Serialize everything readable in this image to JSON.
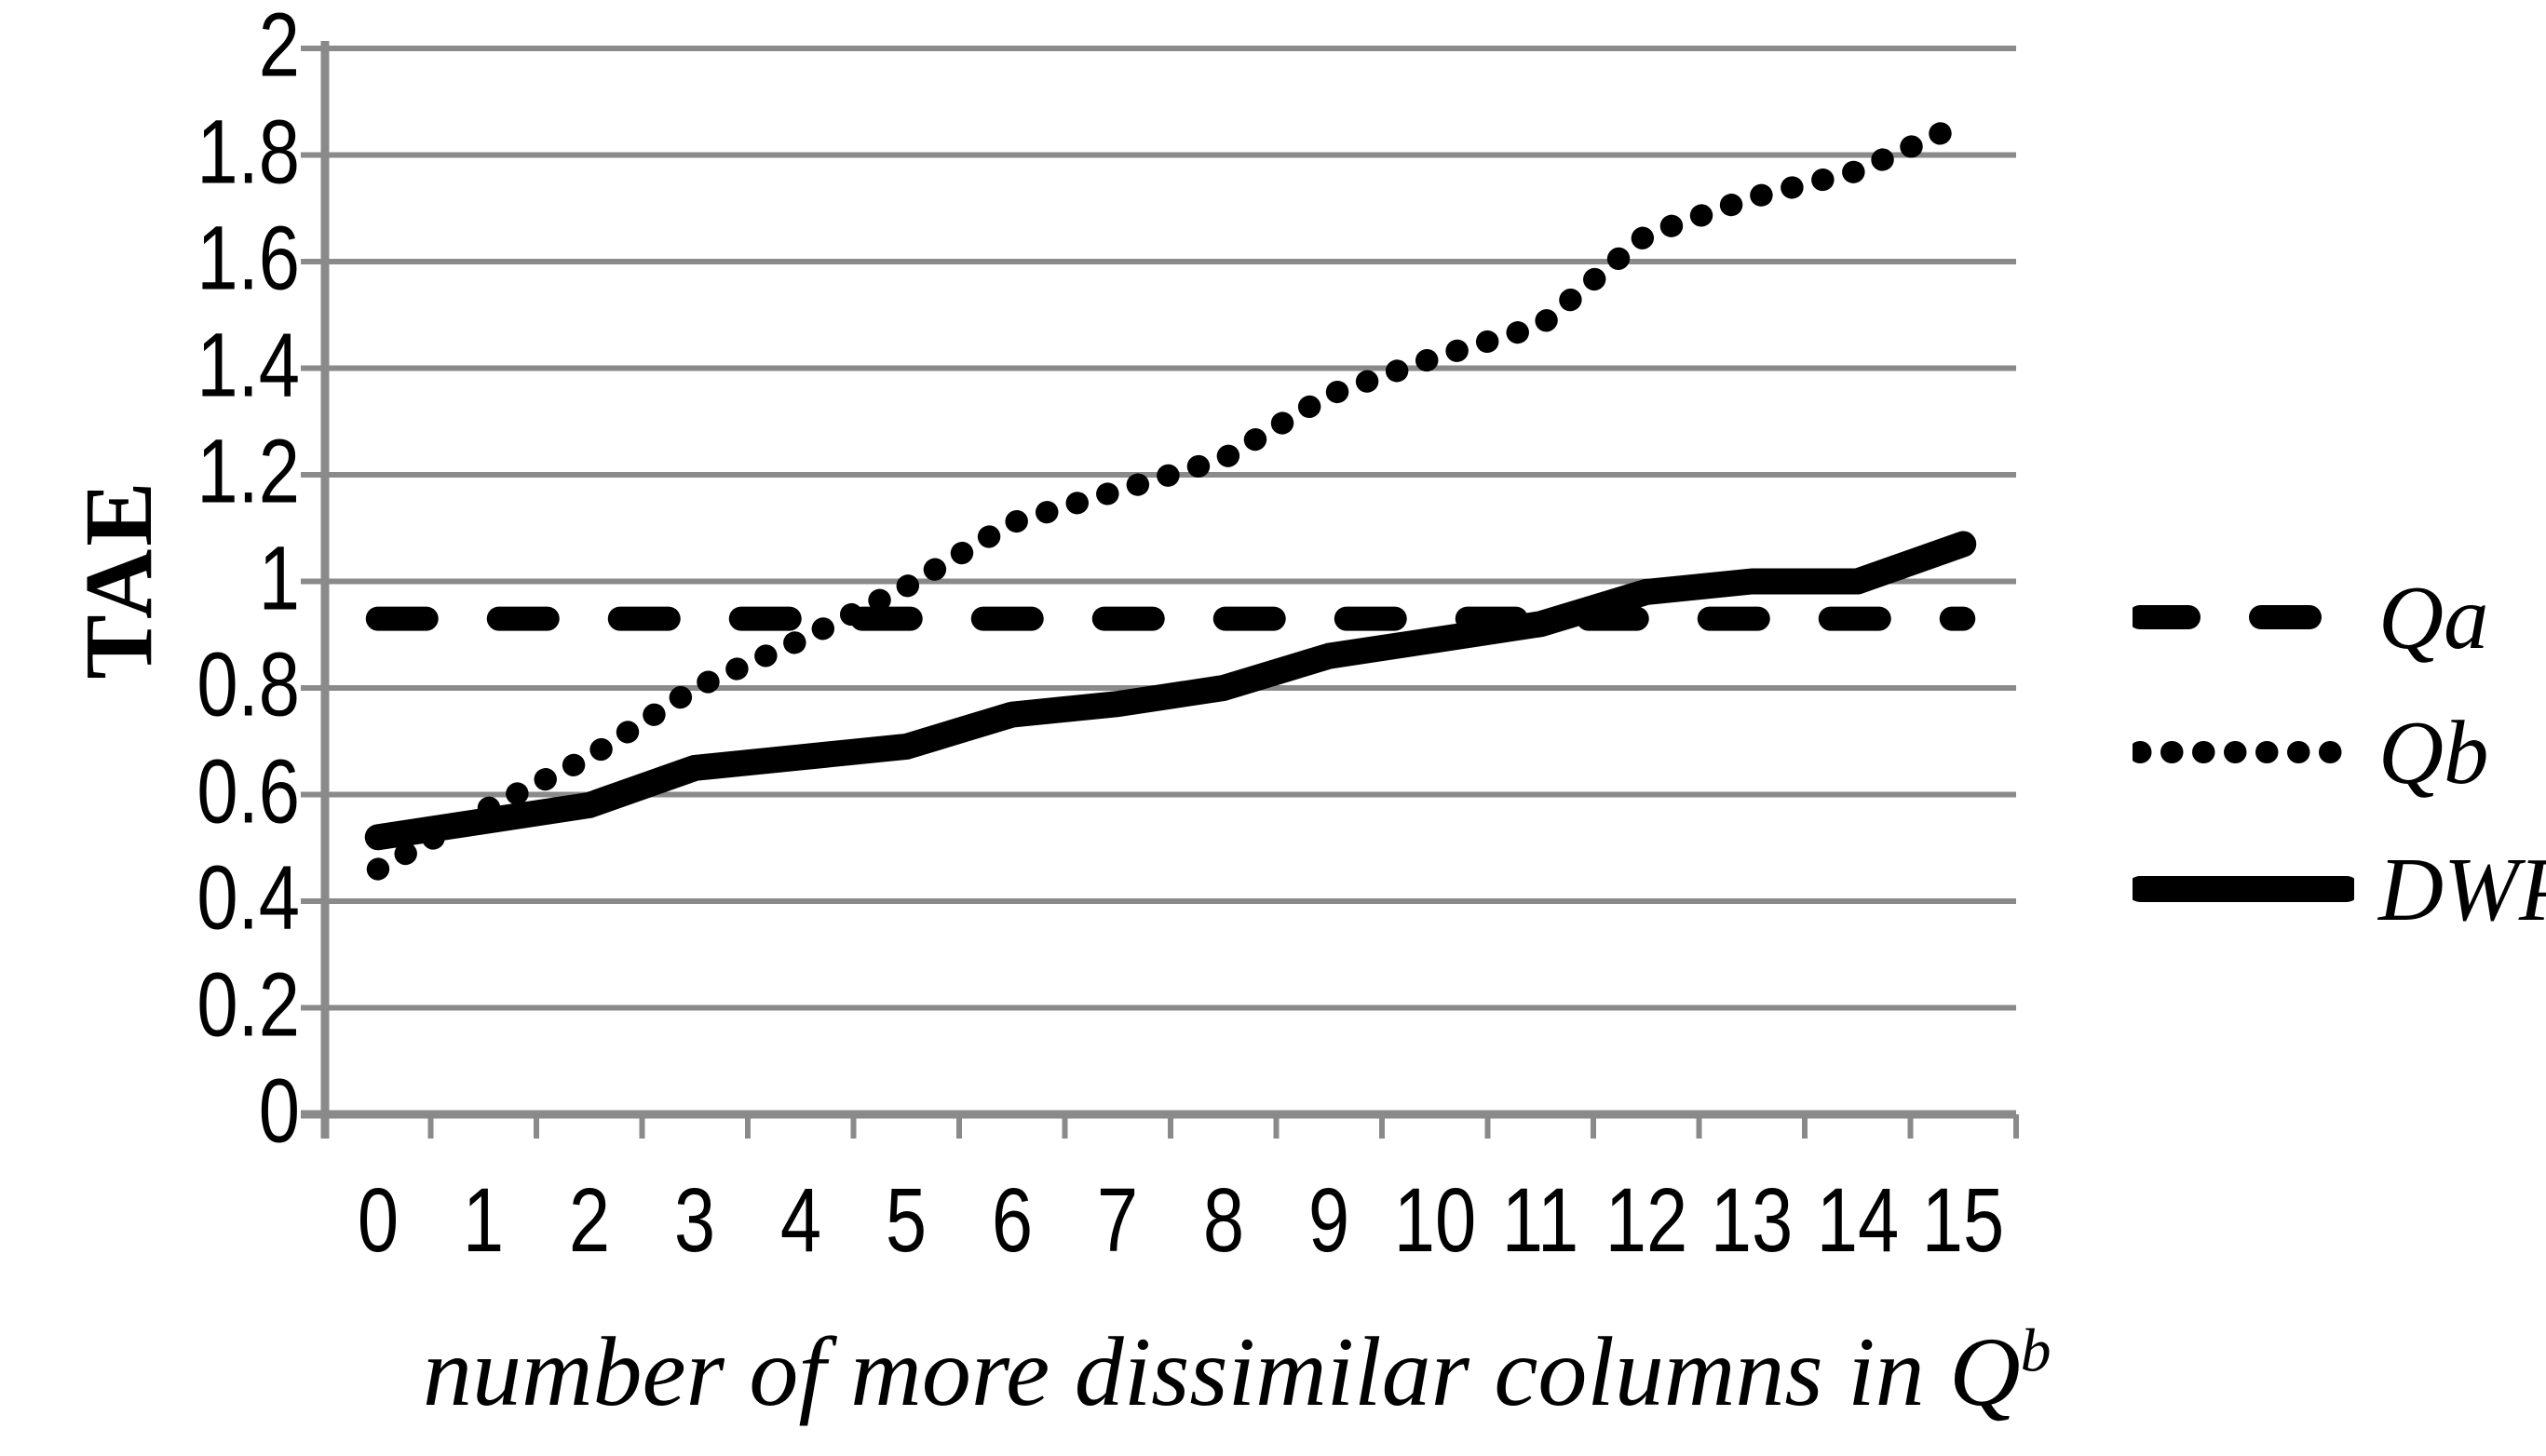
{
  "figure": {
    "background": "#ffffff",
    "grid_color": "#8a8a8a",
    "series_color": "#000000"
  },
  "y_axis": {
    "label": "TAE",
    "tick_labels": [
      "2",
      "1.8",
      "1.6",
      "1.4",
      "1.2",
      "1",
      "0.8",
      "0.6",
      "0.4",
      "0.2",
      "0"
    ],
    "min": 0,
    "max": 2
  },
  "x_axis": {
    "title_main": "number of more dissimilar columns in Q",
    "title_sup": "b",
    "tick_labels": [
      "0",
      "1",
      "2",
      "3",
      "4",
      "5",
      "6",
      "7",
      "8",
      "9",
      "10",
      "11",
      "12",
      "13",
      "14",
      "15"
    ]
  },
  "chart_data": {
    "type": "line",
    "title": "",
    "xlabel": "number of more dissimilar columns in Q^b",
    "ylabel": "TAE",
    "x_categories": [
      "0",
      "1",
      "2",
      "3",
      "4",
      "5",
      "6",
      "7",
      "8",
      "9",
      "10",
      "11",
      "12",
      "13",
      "14",
      "15"
    ],
    "ylim": [
      0,
      2
    ],
    "y_tick_step": 0.2,
    "grid": "horizontal",
    "legend_position": "right",
    "series": [
      {
        "name": "Qa",
        "style": "dashed",
        "values": [
          0.93,
          0.93,
          0.93,
          0.93,
          0.93,
          0.93,
          0.93,
          0.93,
          0.93,
          0.93,
          0.93,
          0.93,
          0.93,
          0.93,
          0.93,
          0.93
        ]
      },
      {
        "name": "Qb",
        "style": "dotted",
        "values": [
          0.46,
          0.57,
          0.67,
          0.8,
          0.89,
          0.99,
          1.11,
          1.17,
          1.23,
          1.35,
          1.42,
          1.48,
          1.65,
          1.72,
          1.77,
          1.86
        ]
      },
      {
        "name": "DWP",
        "style": "solid",
        "values": [
          0.52,
          0.55,
          0.58,
          0.65,
          0.67,
          0.69,
          0.75,
          0.77,
          0.8,
          0.86,
          0.89,
          0.92,
          0.98,
          1.0,
          1.0,
          1.07
        ]
      }
    ]
  }
}
